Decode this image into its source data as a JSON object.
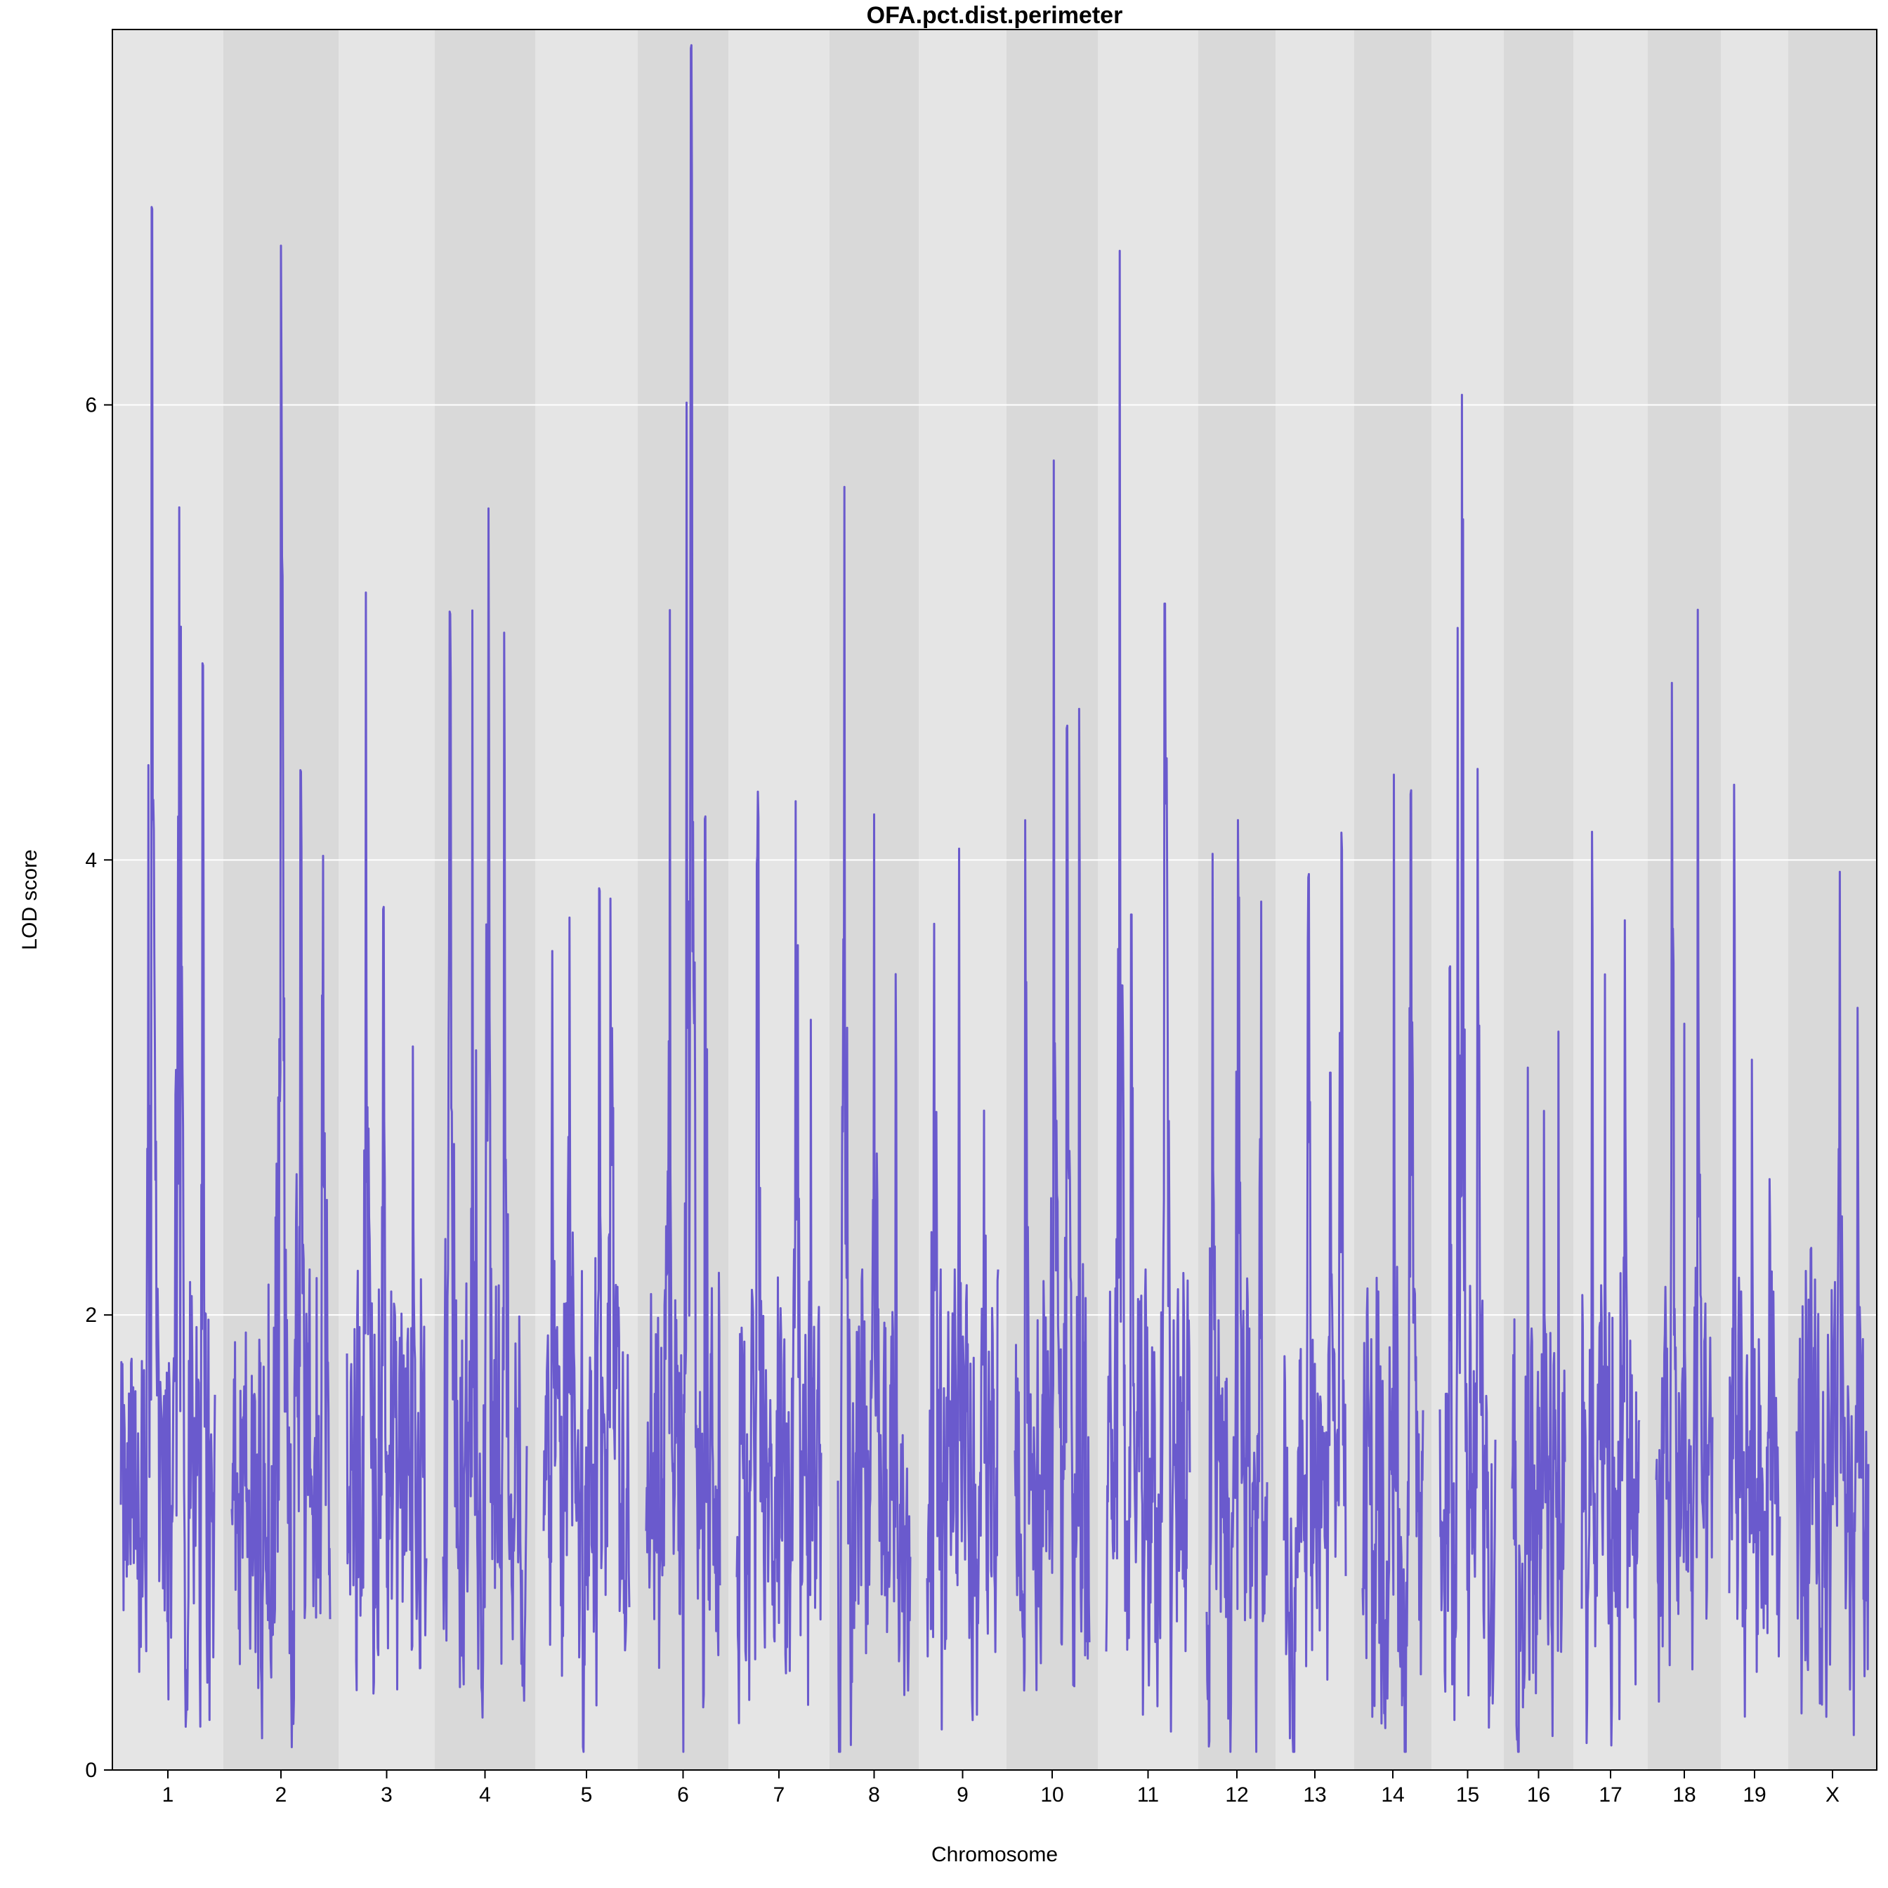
{
  "chart_data": {
    "type": "line",
    "title": "OFA.pct.dist.perimeter",
    "xlabel": "Chromosome",
    "ylabel": "LOD score",
    "ylim": [
      0,
      7.65
    ],
    "yticks": [
      0,
      2,
      4,
      6
    ],
    "grid": "horizontal",
    "colors": {
      "line": "#6a5acd",
      "band_light": "#e5e5e5",
      "band_dark": "#d9d9d9",
      "grid": "#ffffff"
    },
    "chromosomes": [
      {
        "label": "1",
        "peaks": [
          [
            0.33,
            6.88
          ],
          [
            0.62,
            5.55
          ],
          [
            0.87,
            4.87
          ]
        ]
      },
      {
        "label": "2",
        "peaks": [
          [
            0.5,
            6.7
          ],
          [
            0.7,
            4.4
          ],
          [
            0.93,
            4.02
          ]
        ]
      },
      {
        "label": "3",
        "peaks": [
          [
            0.24,
            5.18
          ],
          [
            0.46,
            3.8
          ],
          [
            0.83,
            3.18
          ]
        ]
      },
      {
        "label": "4",
        "peaks": [
          [
            0.08,
            5.1
          ],
          [
            0.35,
            5.1
          ],
          [
            0.54,
            5.55
          ],
          [
            0.73,
            5.0
          ]
        ]
      },
      {
        "label": "5",
        "peaks": [
          [
            0.1,
            3.6
          ],
          [
            0.3,
            3.75
          ],
          [
            0.65,
            3.88
          ],
          [
            0.78,
            3.83
          ]
        ]
      },
      {
        "label": "6",
        "peaks": [
          [
            0.32,
            5.1
          ],
          [
            0.55,
            6.02
          ],
          [
            0.61,
            7.6
          ],
          [
            0.8,
            4.2
          ]
        ]
      },
      {
        "label": "7",
        "peaks": [
          [
            0.25,
            4.3
          ],
          [
            0.7,
            4.26
          ],
          [
            0.88,
            3.3
          ]
        ]
      },
      {
        "label": "8",
        "peaks": [
          [
            0.09,
            5.64
          ],
          [
            0.5,
            4.2
          ],
          [
            0.8,
            3.5
          ]
        ]
      },
      {
        "label": "9",
        "peaks": [
          [
            0.1,
            3.72
          ],
          [
            0.45,
            4.05
          ],
          [
            0.8,
            2.9
          ]
        ]
      },
      {
        "label": "10",
        "peaks": [
          [
            0.14,
            4.18
          ],
          [
            0.52,
            5.76
          ],
          [
            0.7,
            4.6
          ],
          [
            0.86,
            4.67
          ]
        ]
      },
      {
        "label": "11",
        "peaks": [
          [
            0.16,
            6.68
          ],
          [
            0.3,
            3.77
          ],
          [
            0.7,
            5.14
          ]
        ]
      },
      {
        "label": "12",
        "peaks": [
          [
            0.1,
            4.03
          ],
          [
            0.52,
            4.18
          ],
          [
            0.9,
            3.82
          ]
        ]
      },
      {
        "label": "13",
        "peaks": [
          [
            0.4,
            3.95
          ],
          [
            0.75,
            3.08
          ],
          [
            0.93,
            4.12
          ]
        ]
      },
      {
        "label": "14",
        "peaks": [
          [
            0.52,
            4.38
          ],
          [
            0.8,
            4.32
          ]
        ]
      },
      {
        "label": "15",
        "peaks": [
          [
            0.18,
            3.55
          ],
          [
            0.32,
            5.02
          ],
          [
            0.4,
            6.05
          ],
          [
            0.68,
            4.4
          ]
        ]
      },
      {
        "label": "16",
        "peaks": [
          [
            0.3,
            3.1
          ],
          [
            0.6,
            2.9
          ],
          [
            0.88,
            3.25
          ]
        ]
      },
      {
        "label": "17",
        "peaks": [
          [
            0.18,
            4.13
          ],
          [
            0.4,
            3.5
          ],
          [
            0.75,
            3.74
          ]
        ]
      },
      {
        "label": "18",
        "peaks": [
          [
            0.28,
            4.78
          ],
          [
            0.5,
            3.28
          ],
          [
            0.74,
            5.1
          ]
        ]
      },
      {
        "label": "19",
        "peaks": [
          [
            0.1,
            4.35
          ],
          [
            0.45,
            3.13
          ],
          [
            0.8,
            2.6
          ]
        ]
      },
      {
        "label": "X",
        "peaks": [
          [
            0.2,
            2.3
          ],
          [
            0.6,
            3.95
          ],
          [
            0.85,
            3.35
          ]
        ]
      }
    ]
  }
}
